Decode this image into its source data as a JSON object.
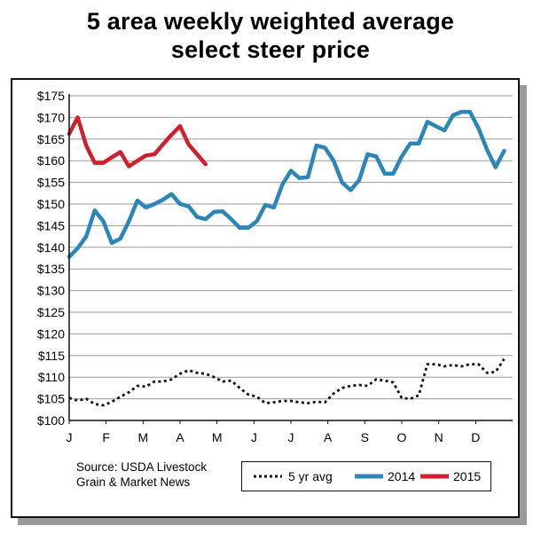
{
  "title_line1": "5 area weekly weighted average",
  "title_line2": "select steer price",
  "source_line1": "Source: USDA Livestock",
  "source_line2": "Grain & Market News",
  "chart_data": {
    "type": "line",
    "title": "5 area weekly weighted average select steer price",
    "xlabel": "",
    "ylabel": "",
    "x_ticks": [
      "J",
      "F",
      "M",
      "A",
      "M",
      "J",
      "J",
      "A",
      "S",
      "O",
      "N",
      "D"
    ],
    "y_ticks": [
      "$100",
      "$105",
      "$110",
      "$115",
      "$120",
      "$125",
      "$130",
      "$135",
      "$140",
      "$145",
      "$150",
      "$155",
      "$160",
      "$165",
      "$170",
      "$175"
    ],
    "ylim": [
      100,
      175
    ],
    "xlim": [
      0,
      52
    ],
    "x_unit": "week of year",
    "grid": "horizontal",
    "legend_position": "bottom-right",
    "series": [
      {
        "name": "5 yr avg",
        "color": "#111111",
        "style": "dotted",
        "points": [
          [
            0,
            105.2
          ],
          [
            1,
            104.6
          ],
          [
            2,
            105.0
          ],
          [
            3,
            103.8
          ],
          [
            4,
            103.5
          ],
          [
            5,
            104.3
          ],
          [
            6,
            105.5
          ],
          [
            7,
            106.5
          ],
          [
            8,
            108.0
          ],
          [
            9,
            107.8
          ],
          [
            10,
            109.0
          ],
          [
            11,
            109.0
          ],
          [
            12,
            109.5
          ],
          [
            13,
            110.8
          ],
          [
            14,
            111.6
          ],
          [
            15,
            111.0
          ],
          [
            16,
            110.8
          ],
          [
            17,
            110.0
          ],
          [
            18,
            109.0
          ],
          [
            19,
            109.2
          ],
          [
            20,
            107.5
          ],
          [
            21,
            106.0
          ],
          [
            22,
            105.5
          ],
          [
            23,
            104.0
          ],
          [
            24,
            104.2
          ],
          [
            25,
            104.5
          ],
          [
            26,
            104.5
          ],
          [
            27,
            104.2
          ],
          [
            28,
            104.0
          ],
          [
            29,
            104.3
          ],
          [
            30,
            104.2
          ],
          [
            31,
            106.2
          ],
          [
            32,
            107.5
          ],
          [
            33,
            108.0
          ],
          [
            34,
            108.2
          ],
          [
            35,
            108.0
          ],
          [
            36,
            109.5
          ],
          [
            37,
            109.2
          ],
          [
            38,
            108.8
          ],
          [
            39,
            105.2
          ],
          [
            40,
            105.0
          ],
          [
            41,
            105.8
          ],
          [
            42,
            113.0
          ],
          [
            43,
            113.0
          ],
          [
            44,
            112.5
          ],
          [
            45,
            112.8
          ],
          [
            46,
            112.5
          ],
          [
            47,
            113.0
          ],
          [
            48,
            113.0
          ],
          [
            49,
            111.0
          ],
          [
            50,
            111.2
          ],
          [
            51,
            114.2
          ]
        ]
      },
      {
        "name": "2014",
        "color": "#2a86b8",
        "style": "solid",
        "points": [
          [
            0,
            137.8
          ],
          [
            1,
            139.8
          ],
          [
            2,
            142.5
          ],
          [
            3,
            148.5
          ],
          [
            4,
            146.0
          ],
          [
            5,
            141.0
          ],
          [
            6,
            142.0
          ],
          [
            7,
            146.0
          ],
          [
            8,
            150.8
          ],
          [
            9,
            149.2
          ],
          [
            10,
            150.0
          ],
          [
            11,
            151.0
          ],
          [
            12,
            152.3
          ],
          [
            13,
            150.0
          ],
          [
            14,
            149.5
          ],
          [
            15,
            147.0
          ],
          [
            16,
            146.5
          ],
          [
            17,
            148.2
          ],
          [
            18,
            148.3
          ],
          [
            19,
            146.5
          ],
          [
            20,
            144.5
          ],
          [
            21,
            144.5
          ],
          [
            22,
            146.0
          ],
          [
            23,
            149.8
          ],
          [
            24,
            149.2
          ],
          [
            25,
            154.5
          ],
          [
            26,
            157.7
          ],
          [
            27,
            156.0
          ],
          [
            28,
            156.2
          ],
          [
            29,
            163.5
          ],
          [
            30,
            163.0
          ],
          [
            31,
            160.0
          ],
          [
            32,
            155.0
          ],
          [
            33,
            153.2
          ],
          [
            34,
            155.5
          ],
          [
            35,
            161.5
          ],
          [
            36,
            161.0
          ],
          [
            37,
            157.0
          ],
          [
            38,
            157.0
          ],
          [
            39,
            161.0
          ],
          [
            40,
            164.0
          ],
          [
            41,
            164.0
          ],
          [
            42,
            169.0
          ],
          [
            43,
            168.0
          ],
          [
            44,
            167.0
          ],
          [
            45,
            170.5
          ],
          [
            46,
            171.3
          ],
          [
            47,
            171.3
          ],
          [
            48,
            167.5
          ],
          [
            49,
            162.5
          ],
          [
            50,
            158.5
          ],
          [
            51,
            162.3
          ]
        ]
      },
      {
        "name": "2015",
        "color": "#d0202e",
        "style": "solid",
        "points": [
          [
            0,
            166.2
          ],
          [
            1,
            170.0
          ],
          [
            2,
            163.5
          ],
          [
            3,
            159.5
          ],
          [
            4,
            159.5
          ],
          [
            5,
            160.8
          ],
          [
            6,
            162.0
          ],
          [
            7,
            158.7
          ],
          [
            8,
            160.0
          ],
          [
            9,
            161.2
          ],
          [
            10,
            161.5
          ],
          [
            11,
            163.8
          ],
          [
            12,
            166.0
          ],
          [
            13,
            168.0
          ],
          [
            14,
            163.8
          ],
          [
            15,
            161.5
          ],
          [
            16,
            159.2
          ]
        ]
      }
    ]
  },
  "legend": {
    "items": [
      {
        "label": "5 yr avg"
      },
      {
        "label": "2014"
      },
      {
        "label": "2015"
      }
    ]
  }
}
